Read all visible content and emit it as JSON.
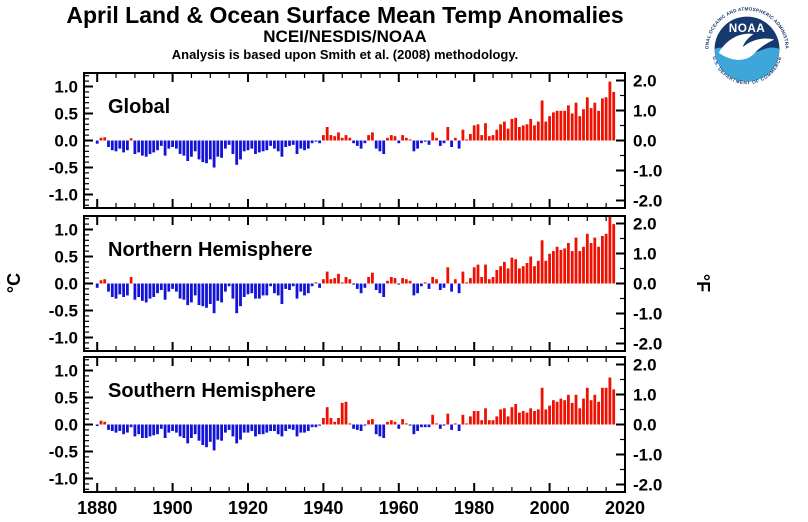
{
  "header": {
    "title": "April Land & Ocean Surface Mean Temp Anomalies",
    "subtitle": "NCEI/NESDIS/NOAA",
    "methodology": "Analysis is based upon Smith et al. (2008) methodology."
  },
  "logo": {
    "name": "NOAA",
    "top_text": "NATIONAL OCEANIC AND ATMOSPHERIC ADMINISTRATION",
    "bottom_text": "U.S. DEPARTMENT OF COMMERCE",
    "colors": {
      "dark_blue": "#15386e",
      "light_blue": "#3fa6d9",
      "ring_text": "#15386e"
    }
  },
  "chart_data": {
    "type": "bar",
    "title": "April Land & Ocean Surface Mean Temp Anomalies",
    "subtitle": "NCEI/NESDIS/NOAA",
    "year_start": 1880,
    "year_end": 2017,
    "xlim": [
      1876.5,
      2020
    ],
    "ylim_c": [
      -1.25,
      1.25
    ],
    "x_ticks": [
      "1880",
      "1900",
      "1920",
      "1940",
      "1960",
      "1980",
      "2000",
      "2020"
    ],
    "x_minor_step": 5,
    "x_major_step": 20,
    "y_ticks_left_c": [
      "1.0",
      "0.5",
      "0.0",
      "-0.5",
      "-1.0"
    ],
    "y_minor_step_c": 0.1,
    "y_major_step_c": 0.5,
    "y_ticks_right_f": [
      "2.0",
      "1.0",
      "0.0",
      "-1.0",
      "-2.0"
    ],
    "f_minor_step": 0.5,
    "f_major_step": 1.0,
    "ylabel_left": "°C",
    "ylabel_right": "°F",
    "grid": false,
    "legend": "none",
    "colors": {
      "positive": "#ee1000",
      "negative": "#1212d8"
    },
    "panels": [
      {
        "title": "Global",
        "values": [
          -0.06,
          0.05,
          0.06,
          -0.12,
          -0.18,
          -0.2,
          -0.15,
          -0.22,
          -0.18,
          0.04,
          -0.25,
          -0.22,
          -0.28,
          -0.3,
          -0.25,
          -0.22,
          -0.18,
          -0.1,
          -0.28,
          -0.15,
          -0.12,
          -0.15,
          -0.25,
          -0.28,
          -0.38,
          -0.3,
          -0.2,
          -0.35,
          -0.4,
          -0.42,
          -0.35,
          -0.5,
          -0.3,
          -0.32,
          -0.15,
          -0.08,
          -0.25,
          -0.45,
          -0.35,
          -0.2,
          -0.18,
          -0.15,
          -0.25,
          -0.22,
          -0.2,
          -0.18,
          -0.1,
          -0.15,
          -0.2,
          -0.3,
          -0.12,
          -0.1,
          -0.08,
          -0.25,
          -0.15,
          -0.18,
          -0.15,
          -0.05,
          -0.02,
          -0.05,
          0.1,
          0.25,
          0.1,
          0.08,
          0.15,
          0.05,
          0.1,
          0.05,
          -0.05,
          -0.1,
          -0.15,
          -0.05,
          0.1,
          0.15,
          -0.15,
          -0.2,
          -0.25,
          0.05,
          0.1,
          0.08,
          -0.05,
          0.1,
          0.05,
          0.02,
          -0.2,
          -0.15,
          -0.05,
          -0.02,
          -0.08,
          0.15,
          0.05,
          -0.1,
          -0.05,
          0.25,
          -0.12,
          0.05,
          -0.15,
          0.2,
          0.02,
          0.12,
          0.28,
          0.3,
          0.1,
          0.32,
          0.08,
          0.1,
          0.2,
          0.3,
          0.35,
          0.22,
          0.4,
          0.42,
          0.25,
          0.28,
          0.3,
          0.4,
          0.28,
          0.35,
          0.74,
          0.35,
          0.45,
          0.52,
          0.55,
          0.55,
          0.55,
          0.65,
          0.5,
          0.7,
          0.45,
          0.58,
          0.8,
          0.6,
          0.7,
          0.55,
          0.78,
          0.8,
          1.09,
          0.9
        ]
      },
      {
        "title": "Northern Hemisphere",
        "values": [
          -0.08,
          0.06,
          0.08,
          -0.15,
          -0.25,
          -0.28,
          -0.2,
          -0.25,
          -0.22,
          0.12,
          -0.3,
          -0.25,
          -0.32,
          -0.35,
          -0.28,
          -0.25,
          -0.18,
          -0.12,
          -0.3,
          -0.15,
          -0.1,
          -0.15,
          -0.28,
          -0.3,
          -0.4,
          -0.35,
          -0.22,
          -0.4,
          -0.42,
          -0.45,
          -0.38,
          -0.55,
          -0.32,
          -0.35,
          -0.15,
          -0.05,
          -0.28,
          -0.55,
          -0.42,
          -0.25,
          -0.2,
          -0.18,
          -0.28,
          -0.28,
          -0.22,
          -0.22,
          -0.05,
          -0.18,
          -0.22,
          -0.38,
          -0.1,
          -0.12,
          -0.05,
          -0.28,
          -0.15,
          -0.22,
          -0.18,
          -0.05,
          0.02,
          -0.08,
          0.08,
          0.22,
          0.08,
          0.1,
          0.18,
          0.02,
          0.12,
          0.08,
          -0.02,
          -0.1,
          -0.18,
          -0.08,
          0.12,
          0.2,
          -0.12,
          -0.18,
          -0.25,
          0.05,
          0.12,
          0.1,
          -0.02,
          0.1,
          0.08,
          0.05,
          -0.22,
          -0.18,
          -0.05,
          0.02,
          -0.1,
          0.12,
          0.08,
          -0.12,
          -0.08,
          0.3,
          -0.15,
          0.08,
          -0.18,
          0.22,
          0.02,
          0.1,
          0.3,
          0.35,
          0.12,
          0.35,
          0.08,
          0.12,
          0.25,
          0.32,
          0.4,
          0.28,
          0.48,
          0.45,
          0.28,
          0.32,
          0.38,
          0.5,
          0.32,
          0.42,
          0.8,
          0.42,
          0.55,
          0.6,
          0.68,
          0.62,
          0.65,
          0.75,
          0.6,
          0.85,
          0.6,
          0.68,
          0.92,
          0.75,
          0.85,
          0.68,
          0.88,
          0.92,
          1.24,
          1.1
        ]
      },
      {
        "title": "Southern Hemisphere",
        "values": [
          -0.03,
          0.07,
          0.05,
          -0.1,
          -0.12,
          -0.15,
          -0.12,
          -0.18,
          -0.15,
          -0.05,
          -0.22,
          -0.18,
          -0.25,
          -0.25,
          -0.22,
          -0.2,
          -0.18,
          -0.08,
          -0.25,
          -0.15,
          -0.12,
          -0.15,
          -0.22,
          -0.25,
          -0.35,
          -0.25,
          -0.18,
          -0.3,
          -0.38,
          -0.42,
          -0.32,
          -0.48,
          -0.28,
          -0.3,
          -0.15,
          -0.1,
          -0.22,
          -0.35,
          -0.28,
          -0.15,
          -0.15,
          -0.12,
          -0.22,
          -0.18,
          -0.18,
          -0.15,
          -0.12,
          -0.12,
          -0.18,
          -0.22,
          -0.12,
          -0.08,
          -0.1,
          -0.22,
          -0.15,
          -0.15,
          -0.12,
          -0.05,
          -0.05,
          -0.02,
          0.12,
          0.32,
          0.12,
          0.05,
          0.12,
          0.4,
          0.42,
          0.02,
          -0.08,
          -0.1,
          -0.12,
          -0.02,
          0.08,
          0.1,
          -0.18,
          -0.22,
          -0.25,
          0.05,
          0.08,
          0.05,
          -0.08,
          0.1,
          0.02,
          -0.02,
          -0.18,
          -0.12,
          -0.05,
          -0.05,
          -0.05,
          0.18,
          0.02,
          -0.08,
          -0.02,
          0.2,
          -0.1,
          0.02,
          -0.12,
          0.18,
          0.02,
          0.15,
          0.25,
          0.25,
          0.08,
          0.3,
          0.08,
          0.08,
          0.15,
          0.28,
          0.3,
          0.15,
          0.32,
          0.38,
          0.22,
          0.25,
          0.22,
          0.3,
          0.25,
          0.28,
          0.68,
          0.28,
          0.35,
          0.45,
          0.42,
          0.48,
          0.45,
          0.55,
          0.4,
          0.55,
          0.3,
          0.48,
          0.68,
          0.45,
          0.55,
          0.42,
          0.68,
          0.68,
          0.87,
          0.65
        ]
      }
    ]
  }
}
